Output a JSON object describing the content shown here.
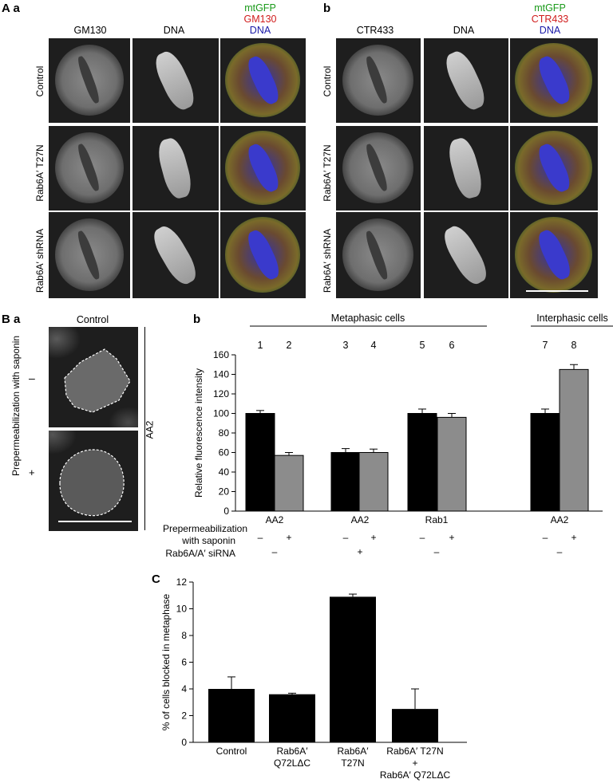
{
  "panelA": {
    "label_A": "A",
    "label_a": "a",
    "label_b": "b",
    "a_cols": [
      "GM130",
      "DNA"
    ],
    "a_merge": [
      "mtGFP",
      "GM130",
      "DNA"
    ],
    "b_cols": [
      "CTR433",
      "DNA"
    ],
    "b_merge": [
      "mtGFP",
      "CTR433",
      "DNA"
    ],
    "rows": [
      "Control",
      "Rab6A′ T27N",
      "Rab6A′ shRNA"
    ]
  },
  "panelB": {
    "label_B": "B",
    "label_a": "a",
    "label_b": "b",
    "control_title": "Control",
    "side_label": "Prepermeabilization with saponin",
    "minus": "–",
    "plus": "+",
    "aa2": "AA2"
  },
  "panelC": {
    "label": "C"
  },
  "chart_data": [
    {
      "type": "bar",
      "ylabel": "Relative fluorescence intensity",
      "ylim": [
        0,
        160
      ],
      "yticks": [
        0,
        20,
        40,
        60,
        80,
        100,
        120,
        140,
        160
      ],
      "group_headers": [
        "Metaphasic cells",
        "Interphasic cells"
      ],
      "bar_numbers": [
        "1",
        "2",
        "3",
        "4",
        "5",
        "6",
        "7",
        "8"
      ],
      "bars": [
        {
          "num": "1",
          "value": 100,
          "err": 3,
          "color": "#000000"
        },
        {
          "num": "2",
          "value": 57,
          "err": 3,
          "color": "#8c8c8c"
        },
        {
          "num": "3",
          "value": 60,
          "err": 4,
          "color": "#000000"
        },
        {
          "num": "4",
          "value": 60,
          "err": 3.5,
          "color": "#8c8c8c"
        },
        {
          "num": "5",
          "value": 100,
          "err": 4.5,
          "color": "#000000"
        },
        {
          "num": "6",
          "value": 96,
          "err": 4,
          "color": "#8c8c8c"
        },
        {
          "num": "7",
          "value": 100,
          "err": 4.5,
          "color": "#000000"
        },
        {
          "num": "8",
          "value": 145,
          "err": 5,
          "color": "#8c8c8c"
        }
      ],
      "categories": [
        "AA2",
        "AA2",
        "Rab1",
        "AA2"
      ],
      "row1_label": "Prepermeabilization",
      "row1_label2": "with saponin",
      "row1_values": [
        "–",
        "+",
        "–",
        "+",
        "–",
        "+",
        "–",
        "+"
      ],
      "row2_label": "Rab6A/A′ siRNA",
      "row2_values": [
        "–",
        "+",
        "–",
        "–"
      ]
    },
    {
      "type": "bar",
      "ylabel": "% of cells blocked in metaphase",
      "ylim": [
        0,
        12
      ],
      "yticks": [
        0,
        2,
        4,
        6,
        8,
        10,
        12
      ],
      "categories": [
        [
          "Control"
        ],
        [
          "Rab6A′",
          "Q72LΔC"
        ],
        [
          "Rab6A′",
          "T27N"
        ],
        [
          "Rab6A′ T27N",
          "+",
          "Rab6A′ Q72LΔC"
        ]
      ],
      "values": [
        4.0,
        3.6,
        10.9,
        2.5
      ],
      "errors": [
        0.9,
        0.08,
        0.2,
        1.5
      ],
      "color": "#000000"
    }
  ]
}
